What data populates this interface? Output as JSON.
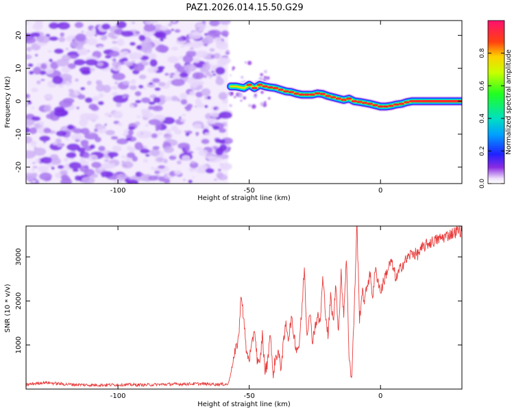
{
  "title": "PAZ1.2026.014.15.50.G29",
  "chart_data": [
    {
      "type": "heatmap",
      "title": "PAZ1.2026.014.15.50.G29",
      "xlabel": "Height of straight line (km)",
      "ylabel": "Frequency (Hz)",
      "xlim": [
        -135,
        31
      ],
      "ylim": [
        -25,
        24.5
      ],
      "xticks": [
        -100,
        -50,
        0
      ],
      "yticks": [
        -20,
        -10,
        0,
        10,
        20
      ],
      "noise_region_x": [
        -135,
        -58
      ],
      "signal_track": {
        "x": [
          -57,
          -55,
          -52,
          -50,
          -48,
          -46,
          -44,
          -42,
          -40,
          -38,
          -36,
          -34,
          -32,
          -30,
          -28,
          -26,
          -24,
          -22,
          -20,
          -18,
          -16,
          -14,
          -12,
          -10,
          -8,
          -6,
          -4,
          -2,
          0,
          2,
          4,
          6,
          8,
          10,
          12,
          14,
          16,
          18,
          20,
          22,
          24,
          26,
          28,
          30,
          31
        ],
        "y": [
          4.5,
          4.5,
          4,
          5,
          4,
          5,
          4.5,
          4.2,
          4,
          3.5,
          3,
          2.8,
          2.3,
          2,
          2,
          2,
          2.4,
          2.2,
          1.6,
          1.2,
          0.8,
          0.4,
          0.8,
          0,
          -0.2,
          -0.5,
          -0.8,
          -1.2,
          -1.6,
          -1.6,
          -1.4,
          -1,
          -0.8,
          -0.3,
          0,
          0,
          0,
          0,
          0,
          0,
          0,
          0,
          0,
          0,
          0
        ]
      },
      "colorbar": {
        "label": "Normalized spectral amplitude",
        "range": [
          0,
          1
        ],
        "ticks": [
          "0.0",
          "0.2",
          "0.4",
          "0.6",
          "0.8"
        ]
      }
    },
    {
      "type": "line",
      "xlabel": "Height of straight line (km)",
      "ylabel": "SNR (10 * v/v)",
      "xlim": [
        -135,
        31
      ],
      "ylim": [
        0,
        3700
      ],
      "xticks": [
        -100,
        -50,
        0
      ],
      "yticks": [
        1000,
        2000,
        3000
      ],
      "series": [
        {
          "name": "SNR",
          "color": "#e83a3a",
          "x": [
            -135,
            -128,
            -120,
            -110,
            -100,
            -90,
            -80,
            -70,
            -62,
            -58,
            -56,
            -54,
            -53,
            -52,
            -51,
            -50,
            -49,
            -48,
            -47,
            -46,
            -45,
            -44,
            -43,
            -42,
            -41,
            -40,
            -39,
            -38,
            -37,
            -36,
            -35,
            -34,
            -33,
            -32,
            -31,
            -30,
            -29,
            -28,
            -27,
            -26,
            -25,
            -24,
            -23,
            -22,
            -21,
            -20,
            -19,
            -18,
            -17,
            -16,
            -15,
            -14,
            -13,
            -12,
            -11,
            -10,
            -9,
            -8,
            -7,
            -6,
            -5,
            -4,
            -3,
            -2,
            -1,
            0,
            2,
            4,
            6,
            8,
            10,
            12,
            14,
            16,
            18,
            20,
            22,
            24,
            26,
            28,
            30,
            31
          ],
          "y": [
            100,
            150,
            110,
            90,
            100,
            95,
            110,
            120,
            110,
            110,
            650,
            1200,
            2200,
            1500,
            800,
            700,
            950,
            1400,
            700,
            500,
            1250,
            400,
            600,
            1350,
            300,
            700,
            850,
            500,
            1000,
            1500,
            1150,
            1600,
            1250,
            900,
            1000,
            1750,
            2750,
            1200,
            1800,
            1100,
            1400,
            1650,
            1500,
            2500,
            1800,
            1200,
            2100,
            1500,
            2400,
            1300,
            2600,
            1700,
            3000,
            800,
            200,
            1800,
            3800,
            1600,
            2200,
            2000,
            2400,
            2600,
            2100,
            2700,
            2500,
            2200,
            2600,
            2900,
            2500,
            2800,
            2950,
            3100,
            3050,
            3200,
            3300,
            3350,
            3400,
            3450,
            3500,
            3550,
            3600,
            3580
          ]
        }
      ]
    }
  ]
}
